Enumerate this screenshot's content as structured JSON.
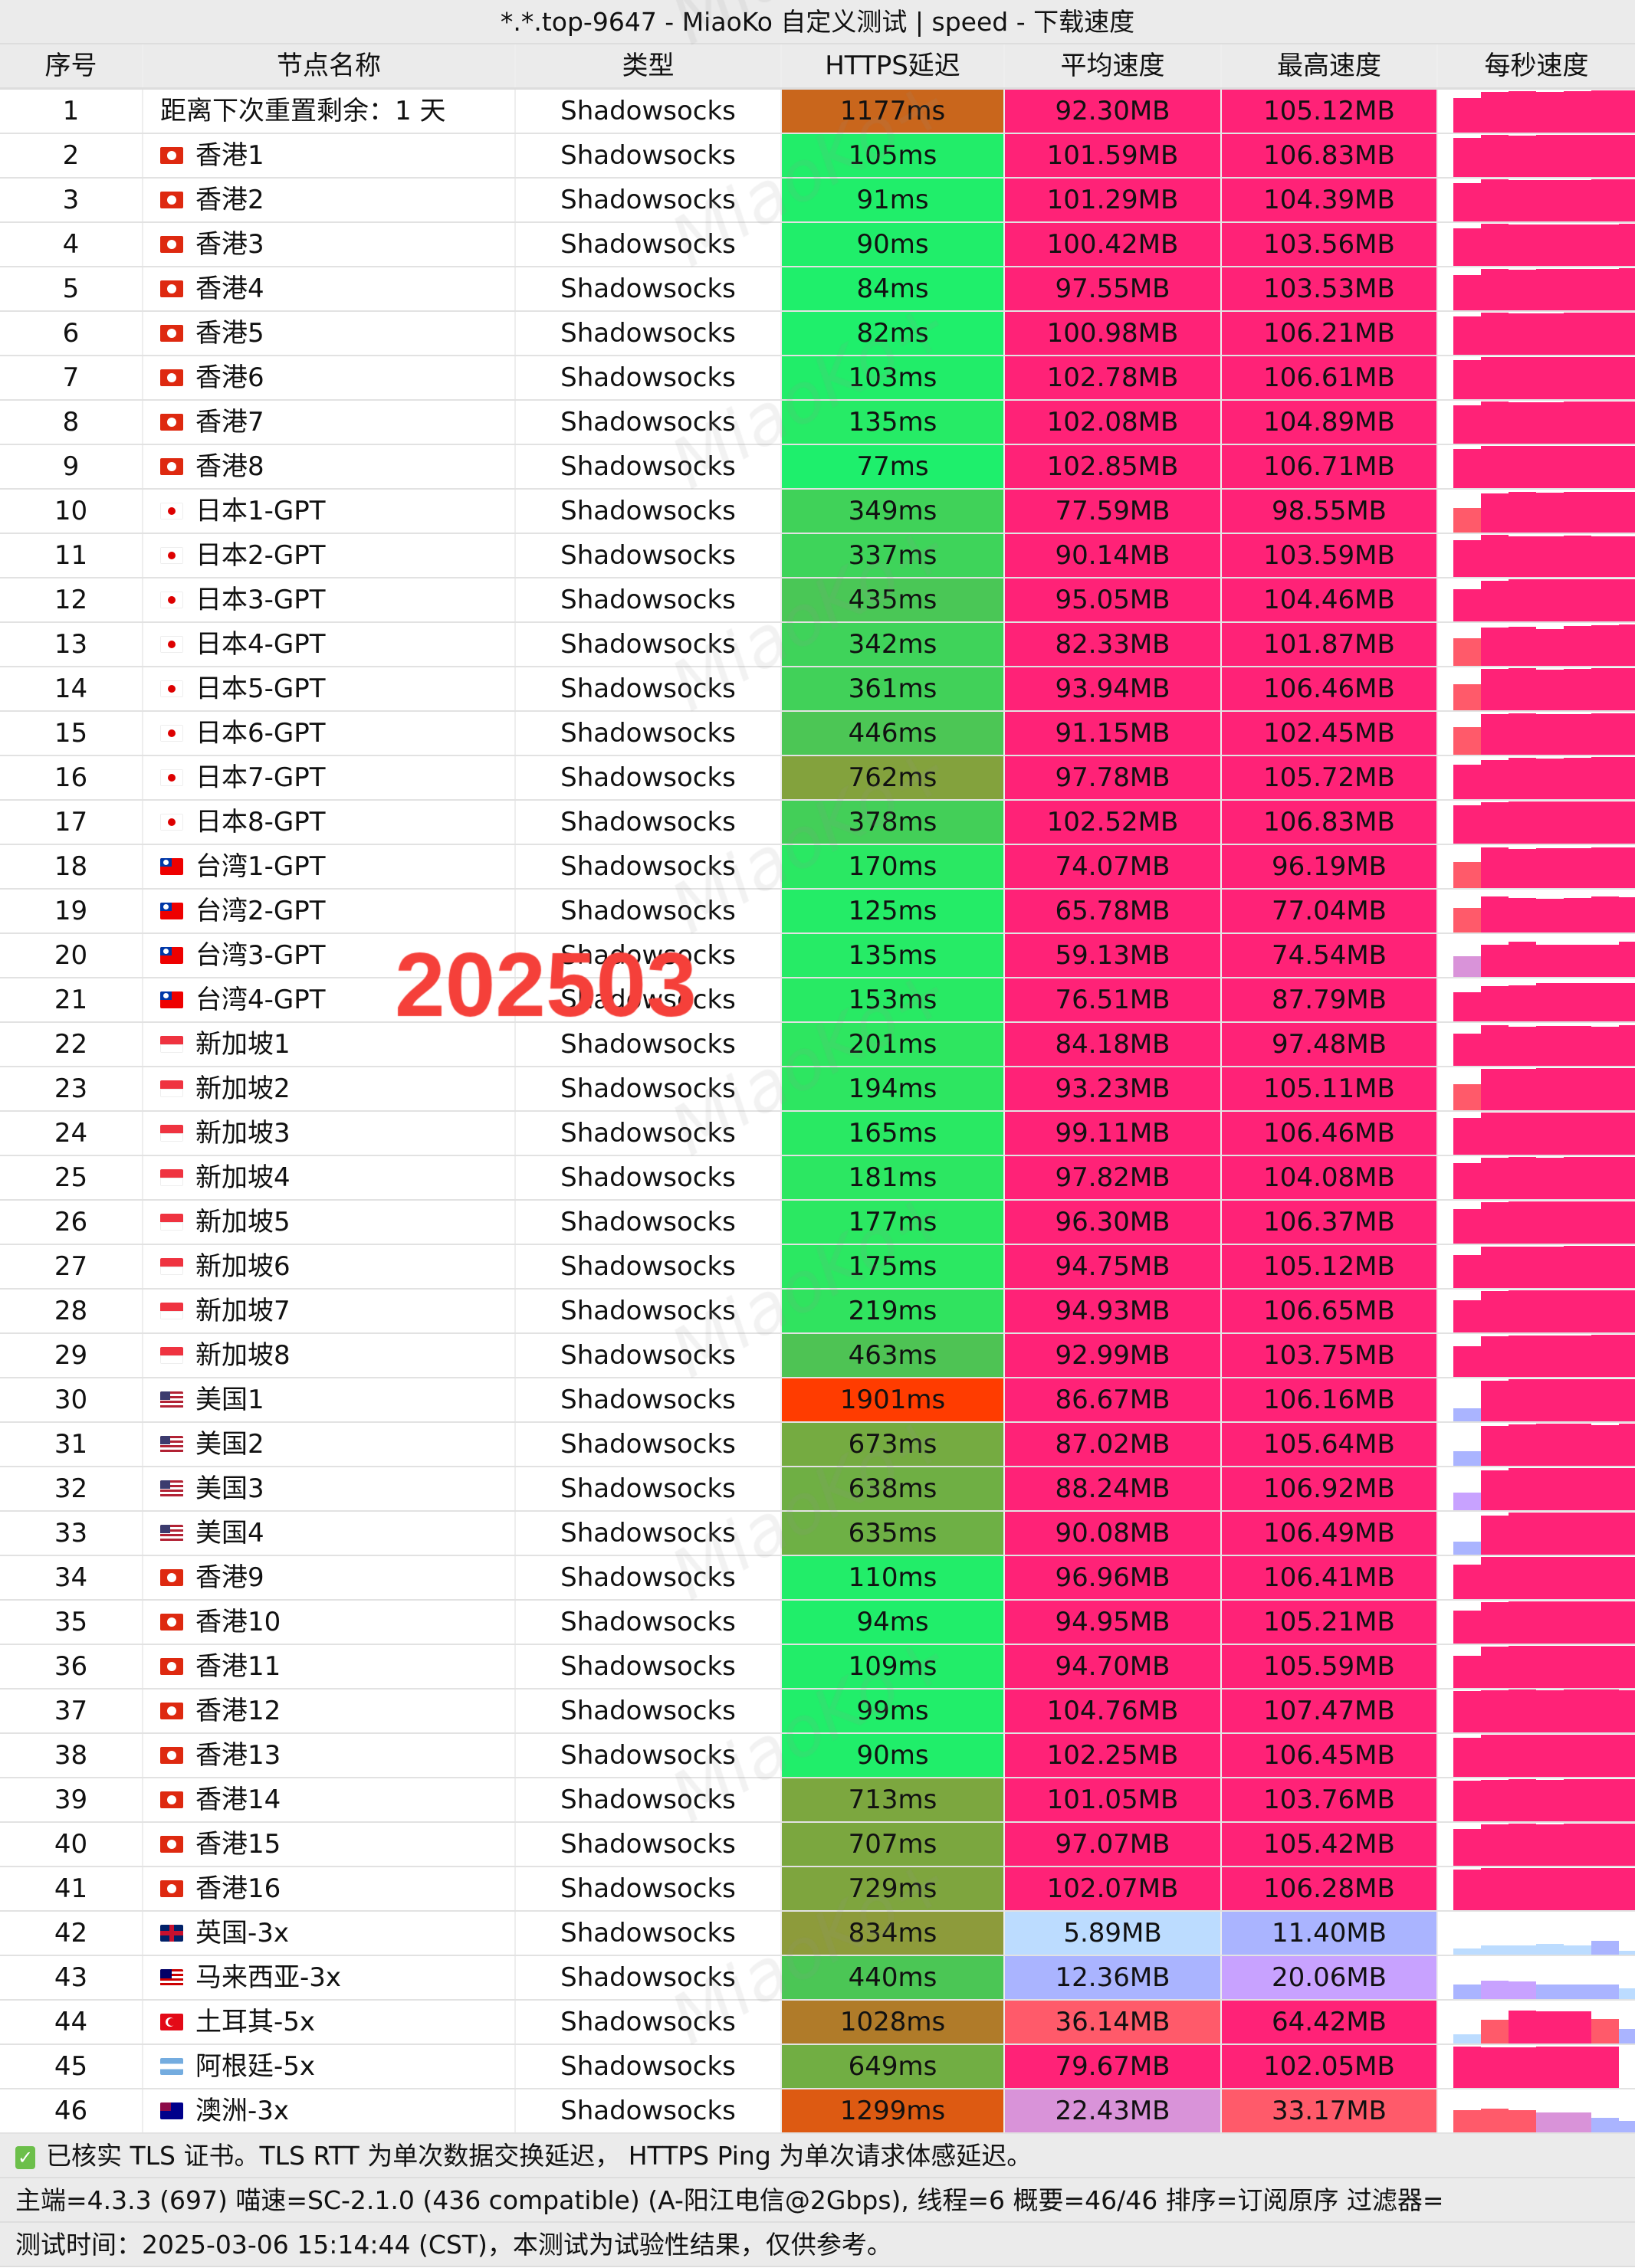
{
  "title": "*.*.top-9647 - MiaoKo 自定义测试 | speed - 下载速度",
  "headers": [
    "序号",
    "节点名称",
    "类型",
    "HTTPS延迟",
    "平均速度",
    "最高速度",
    "每秒速度"
  ],
  "watermark": "MiaoKo+",
  "stamp": "202503",
  "colors": {
    "pink": "#ff2277",
    "salmon": "#ff5a6a",
    "orchid": "#d993d9",
    "violet": "#c8a2ff",
    "periwinkle": "#aab4ff",
    "sky": "#bcdcff"
  },
  "latency_color_stops": [
    [
      0,
      "#14f573"
    ],
    [
      200,
      "#2ee660"
    ],
    [
      450,
      "#4cc555"
    ],
    [
      700,
      "#7aa83f"
    ],
    [
      850,
      "#8f9a3a"
    ],
    [
      1100,
      "#bd6e22"
    ],
    [
      1300,
      "#dd5a12"
    ],
    [
      1900,
      "#ff3c00"
    ]
  ],
  "rows": [
    {
      "n": "1",
      "flag": "",
      "name": "距离下次重置剩余：1 天",
      "type": "Shadowsocks",
      "lat": "1177ms",
      "avg": "92.30MB",
      "max": "105.12MB",
      "ps": [
        70,
        96,
        100,
        98,
        102,
        103,
        105
      ]
    },
    {
      "n": "2",
      "flag": "hk",
      "name": "香港1",
      "type": "Shadowsocks",
      "lat": "105ms",
      "avg": "101.59MB",
      "max": "106.83MB",
      "ps": [
        88,
        106,
        102,
        103,
        104,
        105,
        106
      ]
    },
    {
      "n": "3",
      "flag": "hk",
      "name": "香港2",
      "type": "Shadowsocks",
      "lat": "91ms",
      "avg": "101.29MB",
      "max": "104.39MB",
      "ps": [
        86,
        104,
        101,
        100,
        102,
        103,
        104
      ]
    },
    {
      "n": "4",
      "flag": "hk",
      "name": "香港3",
      "type": "Shadowsocks",
      "lat": "90ms",
      "avg": "100.42MB",
      "max": "103.56MB",
      "ps": [
        84,
        103,
        100,
        99,
        101,
        102,
        103
      ]
    },
    {
      "n": "5",
      "flag": "hk",
      "name": "香港4",
      "type": "Shadowsocks",
      "lat": "84ms",
      "avg": "97.55MB",
      "max": "103.53MB",
      "ps": [
        72,
        100,
        98,
        99,
        100,
        102,
        103
      ]
    },
    {
      "n": "6",
      "flag": "hk",
      "name": "香港5",
      "type": "Shadowsocks",
      "lat": "82ms",
      "avg": "100.98MB",
      "max": "106.21MB",
      "ps": [
        85,
        106,
        102,
        101,
        103,
        104,
        106
      ]
    },
    {
      "n": "7",
      "flag": "hk",
      "name": "香港6",
      "type": "Shadowsocks",
      "lat": "103ms",
      "avg": "102.78MB",
      "max": "106.61MB",
      "ps": [
        88,
        106,
        104,
        103,
        104,
        105,
        106
      ]
    },
    {
      "n": "8",
      "flag": "hk",
      "name": "香港7",
      "type": "Shadowsocks",
      "lat": "135ms",
      "avg": "102.08MB",
      "max": "104.89MB",
      "ps": [
        86,
        104,
        102,
        101,
        103,
        104,
        104
      ]
    },
    {
      "n": "9",
      "flag": "hk",
      "name": "香港8",
      "type": "Shadowsocks",
      "lat": "77ms",
      "avg": "102.85MB",
      "max": "106.71MB",
      "ps": [
        88,
        106,
        104,
        103,
        104,
        105,
        106
      ]
    },
    {
      "n": "10",
      "flag": "jp",
      "name": "日本1-GPT",
      "type": "Shadowsocks",
      "lat": "349ms",
      "avg": "77.59MB",
      "max": "98.55MB",
      "ps": [
        35,
        88,
        95,
        92,
        95,
        97,
        98
      ]
    },
    {
      "n": "11",
      "flag": "jp",
      "name": "日本2-GPT",
      "type": "Shadowsocks",
      "lat": "337ms",
      "avg": "90.14MB",
      "max": "103.59MB",
      "ps": [
        80,
        103,
        95,
        95,
        99,
        96,
        97
      ]
    },
    {
      "n": "12",
      "flag": "jp",
      "name": "日本3-GPT",
      "type": "Shadowsocks",
      "lat": "435ms",
      "avg": "95.05MB",
      "max": "104.46MB",
      "ps": [
        60,
        98,
        104,
        103,
        104,
        103,
        104
      ]
    },
    {
      "n": "13",
      "flag": "jp",
      "name": "日本4-GPT",
      "type": "Shadowsocks",
      "lat": "342ms",
      "avg": "82.33MB",
      "max": "101.87MB",
      "ps": [
        45,
        85,
        90,
        80,
        92,
        96,
        101
      ]
    },
    {
      "n": "14",
      "flag": "jp",
      "name": "日本5-GPT",
      "type": "Shadowsocks",
      "lat": "361ms",
      "avg": "93.94MB",
      "max": "106.46MB",
      "ps": [
        40,
        100,
        104,
        98,
        102,
        104,
        106
      ]
    },
    {
      "n": "15",
      "flag": "jp",
      "name": "日本6-GPT",
      "type": "Shadowsocks",
      "lat": "446ms",
      "avg": "91.15MB",
      "max": "102.45MB",
      "ps": [
        45,
        95,
        100,
        96,
        98,
        100,
        102
      ]
    },
    {
      "n": "16",
      "flag": "jp",
      "name": "日本7-GPT",
      "type": "Shadowsocks",
      "lat": "762ms",
      "avg": "97.78MB",
      "max": "105.72MB",
      "ps": [
        70,
        90,
        100,
        98,
        102,
        104,
        105
      ]
    },
    {
      "n": "17",
      "flag": "jp",
      "name": "日本8-GPT",
      "type": "Shadowsocks",
      "lat": "378ms",
      "avg": "102.52MB",
      "max": "106.83MB",
      "ps": [
        85,
        100,
        104,
        103,
        105,
        106,
        106
      ]
    },
    {
      "n": "18",
      "flag": "tw",
      "name": "台湾1-GPT",
      "type": "Shadowsocks",
      "lat": "170ms",
      "avg": "74.07MB",
      "max": "96.19MB",
      "ps": [
        40,
        96,
        90,
        92,
        94,
        95,
        96
      ]
    },
    {
      "n": "19",
      "flag": "tw",
      "name": "台湾2-GPT",
      "type": "Shadowsocks",
      "lat": "125ms",
      "avg": "65.78MB",
      "max": "77.04MB",
      "ps": [
        35,
        77,
        70,
        68,
        70,
        75,
        74
      ]
    },
    {
      "n": "20",
      "flag": "tw",
      "name": "台湾3-GPT",
      "type": "Shadowsocks",
      "lat": "135ms",
      "avg": "59.13MB",
      "max": "74.54MB",
      "ps": [
        25,
        60,
        74,
        60,
        60,
        60,
        74
      ]
    },
    {
      "n": "21",
      "flag": "tw",
      "name": "台湾4-GPT",
      "type": "Shadowsocks",
      "lat": "153ms",
      "avg": "76.51MB",
      "max": "87.79MB",
      "ps": [
        50,
        72,
        75,
        87,
        87,
        86,
        86
      ]
    },
    {
      "n": "22",
      "flag": "sg",
      "name": "新加坡1",
      "type": "Shadowsocks",
      "lat": "201ms",
      "avg": "84.18MB",
      "max": "97.48MB",
      "ps": [
        60,
        95,
        90,
        92,
        94,
        90,
        97
      ]
    },
    {
      "n": "23",
      "flag": "sg",
      "name": "新加坡2",
      "type": "Shadowsocks",
      "lat": "194ms",
      "avg": "93.23MB",
      "max": "105.11MB",
      "ps": [
        40,
        100,
        102,
        103,
        104,
        105,
        105
      ]
    },
    {
      "n": "24",
      "flag": "sg",
      "name": "新加坡3",
      "type": "Shadowsocks",
      "lat": "165ms",
      "avg": "99.11MB",
      "max": "106.46MB",
      "ps": [
        80,
        104,
        105,
        104,
        106,
        105,
        106
      ]
    },
    {
      "n": "25",
      "flag": "sg",
      "name": "新加坡4",
      "type": "Shadowsocks",
      "lat": "181ms",
      "avg": "97.82MB",
      "max": "104.08MB",
      "ps": [
        75,
        102,
        103,
        100,
        104,
        103,
        104
      ]
    },
    {
      "n": "26",
      "flag": "sg",
      "name": "新加坡5",
      "type": "Shadowsocks",
      "lat": "177ms",
      "avg": "96.30MB",
      "max": "106.37MB",
      "ps": [
        70,
        100,
        104,
        103,
        105,
        106,
        106
      ]
    },
    {
      "n": "27",
      "flag": "sg",
      "name": "新加坡6",
      "type": "Shadowsocks",
      "lat": "175ms",
      "avg": "94.75MB",
      "max": "105.12MB",
      "ps": [
        65,
        100,
        102,
        101,
        104,
        105,
        105
      ]
    },
    {
      "n": "28",
      "flag": "sg",
      "name": "新加坡7",
      "type": "Shadowsocks",
      "lat": "219ms",
      "avg": "94.93MB",
      "max": "106.65MB",
      "ps": [
        60,
        100,
        104,
        103,
        105,
        106,
        106
      ]
    },
    {
      "n": "29",
      "flag": "sg",
      "name": "新加坡8",
      "type": "Shadowsocks",
      "lat": "463ms",
      "avg": "92.99MB",
      "max": "103.75MB",
      "ps": [
        55,
        98,
        100,
        101,
        102,
        103,
        103
      ]
    },
    {
      "n": "30",
      "flag": "us",
      "name": "美国1",
      "type": "Shadowsocks",
      "lat": "1901ms",
      "avg": "86.67MB",
      "max": "106.16MB",
      "ps": [
        10,
        96,
        104,
        105,
        106,
        106,
        104
      ]
    },
    {
      "n": "31",
      "flag": "us",
      "name": "美国2",
      "type": "Shadowsocks",
      "lat": "673ms",
      "avg": "87.02MB",
      "max": "105.64MB",
      "ps": [
        12,
        94,
        102,
        105,
        105,
        98,
        105
      ]
    },
    {
      "n": "32",
      "flag": "us",
      "name": "美国3",
      "type": "Shadowsocks",
      "lat": "638ms",
      "avg": "88.24MB",
      "max": "106.92MB",
      "ps": [
        18,
        92,
        104,
        106,
        106,
        106,
        103
      ]
    },
    {
      "n": "33",
      "flag": "us",
      "name": "美国4",
      "type": "Shadowsocks",
      "lat": "635ms",
      "avg": "90.08MB",
      "max": "106.49MB",
      "ps": [
        10,
        90,
        106,
        106,
        106,
        106,
        106
      ]
    },
    {
      "n": "34",
      "flag": "hk",
      "name": "香港9",
      "type": "Shadowsocks",
      "lat": "110ms",
      "avg": "96.96MB",
      "max": "106.41MB",
      "ps": [
        70,
        104,
        105,
        104,
        106,
        106,
        104
      ]
    },
    {
      "n": "35",
      "flag": "hk",
      "name": "香港10",
      "type": "Shadowsocks",
      "lat": "94ms",
      "avg": "94.95MB",
      "max": "105.21MB",
      "ps": [
        65,
        102,
        104,
        103,
        105,
        105,
        104
      ]
    },
    {
      "n": "36",
      "flag": "hk",
      "name": "香港11",
      "type": "Shadowsocks",
      "lat": "109ms",
      "avg": "94.70MB",
      "max": "105.59MB",
      "ps": [
        62,
        102,
        104,
        103,
        105,
        105,
        104
      ]
    },
    {
      "n": "37",
      "flag": "hk",
      "name": "香港12",
      "type": "Shadowsocks",
      "lat": "99ms",
      "avg": "104.76MB",
      "max": "107.47MB",
      "ps": [
        100,
        106,
        107,
        106,
        107,
        107,
        106
      ]
    },
    {
      "n": "38",
      "flag": "hk",
      "name": "香港13",
      "type": "Shadowsocks",
      "lat": "90ms",
      "avg": "102.25MB",
      "max": "106.45MB",
      "ps": [
        90,
        105,
        106,
        104,
        106,
        106,
        105
      ]
    },
    {
      "n": "39",
      "flag": "hk",
      "name": "香港14",
      "type": "Shadowsocks",
      "lat": "713ms",
      "avg": "101.05MB",
      "max": "103.76MB",
      "ps": [
        95,
        102,
        103,
        102,
        103,
        103,
        103
      ]
    },
    {
      "n": "40",
      "flag": "hk",
      "name": "香港15",
      "type": "Shadowsocks",
      "lat": "707ms",
      "avg": "97.07MB",
      "max": "105.42MB",
      "ps": [
        80,
        100,
        104,
        102,
        105,
        105,
        104
      ]
    },
    {
      "n": "41",
      "flag": "hk",
      "name": "香港16",
      "type": "Shadowsocks",
      "lat": "729ms",
      "avg": "102.07MB",
      "max": "106.28MB",
      "ps": [
        95,
        104,
        106,
        104,
        106,
        106,
        105
      ]
    },
    {
      "n": "42",
      "flag": "gb",
      "name": "英国-3x",
      "type": "Shadowsocks",
      "lat": "834ms",
      "avg": "5.89MB",
      "max": "11.40MB",
      "ps": [
        2,
        5,
        5,
        7,
        5,
        11,
        1
      ]
    },
    {
      "n": "43",
      "flag": "my",
      "name": "马来西亚-3x",
      "type": "Shadowsocks",
      "lat": "440ms",
      "avg": "12.36MB",
      "max": "20.06MB",
      "ps": [
        12,
        20,
        18,
        13,
        12,
        12,
        7
      ]
    },
    {
      "n": "44",
      "flag": "tr",
      "name": "土耳其-5x",
      "type": "Shadowsocks",
      "lat": "1028ms",
      "avg": "36.14MB",
      "max": "64.42MB",
      "ps": [
        5,
        33,
        64,
        60,
        60,
        36,
        12
      ]
    },
    {
      "n": "45",
      "flag": "ar",
      "name": "阿根廷-5x",
      "type": "Shadowsocks",
      "lat": "649ms",
      "avg": "79.67MB",
      "max": "102.05MB",
      "ps": [
        100,
        95,
        95,
        100,
        102,
        100,
        0
      ]
    },
    {
      "n": "46",
      "flag": "au",
      "name": "澳洲-3x",
      "type": "Shadowsocks",
      "lat": "1299ms",
      "avg": "22.43MB",
      "max": "33.17MB",
      "ps": [
        30,
        33,
        30,
        24,
        24,
        12,
        8
      ]
    }
  ],
  "footer": {
    "line1": "已核实 TLS 证书。TLS RTT 为单次数据交换延迟， HTTPS Ping 为单次请求体感延迟。",
    "line2": "主端=4.3.3 (697) 喵速=SC-2.1.0 (436 compatible) (A-阳江电信@2Gbps), 线程=6 概要=46/46 排序=订阅原序 过滤器=",
    "line3": "测试时间：2025-03-06 15:14:44 (CST)，本测试为试验性结果，仅供参考。"
  }
}
